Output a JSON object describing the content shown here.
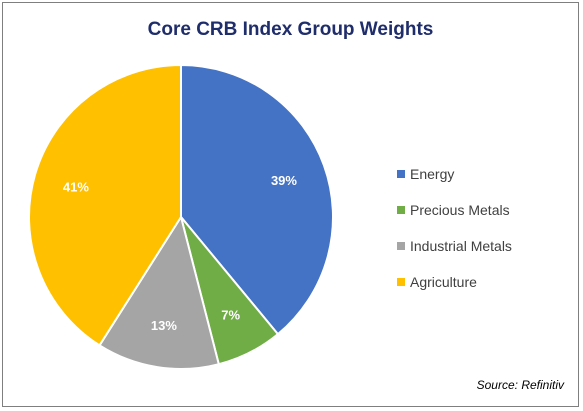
{
  "chart_data": {
    "type": "pie",
    "title": "Core CRB Index Group Weights",
    "categories": [
      "Energy",
      "Precious Metals",
      "Industrial Metals",
      "Agriculture"
    ],
    "values": [
      39,
      7,
      13,
      41
    ],
    "value_labels": [
      "39%",
      "7%",
      "13%",
      "41%"
    ],
    "colors": [
      "#4472c4",
      "#70ad47",
      "#a5a5a5",
      "#ffc000"
    ],
    "legend_position": "right",
    "source": "Source: Refinitiv"
  }
}
